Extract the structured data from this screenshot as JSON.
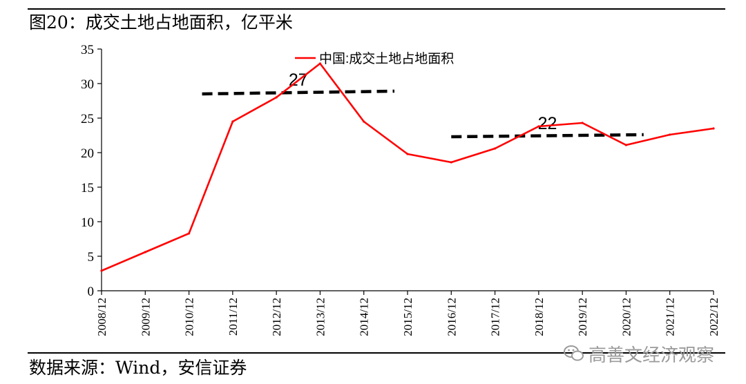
{
  "header": {
    "title": "图20：成交土地占地面积，亿平米"
  },
  "footer": {
    "source": "数据来源：Wind，安信证券"
  },
  "watermark": {
    "text": "高善文经济观察",
    "icon": "wechat-icon"
  },
  "chart_data": {
    "type": "line",
    "title": "",
    "xlabel": "",
    "ylabel": "",
    "ylim": [
      0,
      35
    ],
    "yticks": [
      "0",
      "5",
      "10",
      "15",
      "20",
      "25",
      "30",
      "35"
    ],
    "categories": [
      "2008/12",
      "2009/12",
      "2010/12",
      "2011/12",
      "2012/12",
      "2013/12",
      "2014/12",
      "2015/12",
      "2016/12",
      "2017/12",
      "2018/12",
      "2019/12",
      "2020/12",
      "2021/12",
      "2022/12"
    ],
    "series": [
      {
        "name": "中国:成交土地占地面积",
        "color": "#ff0000",
        "values": [
          2.9,
          5.6,
          8.3,
          24.5,
          28.0,
          32.9,
          24.5,
          19.8,
          18.6,
          20.6,
          23.8,
          24.3,
          21.1,
          22.6,
          23.5
        ]
      }
    ],
    "annotations": [
      {
        "label": "27",
        "value": 27,
        "x_from": 2.3,
        "x_to": 6.7,
        "y_from": 28.5,
        "y_to": 28.9
      },
      {
        "label": "22",
        "value": 22,
        "x_from": 8.0,
        "x_to": 12.4,
        "y_from": 22.3,
        "y_to": 22.6
      }
    ],
    "legend_position": "top-center",
    "grid": false
  }
}
